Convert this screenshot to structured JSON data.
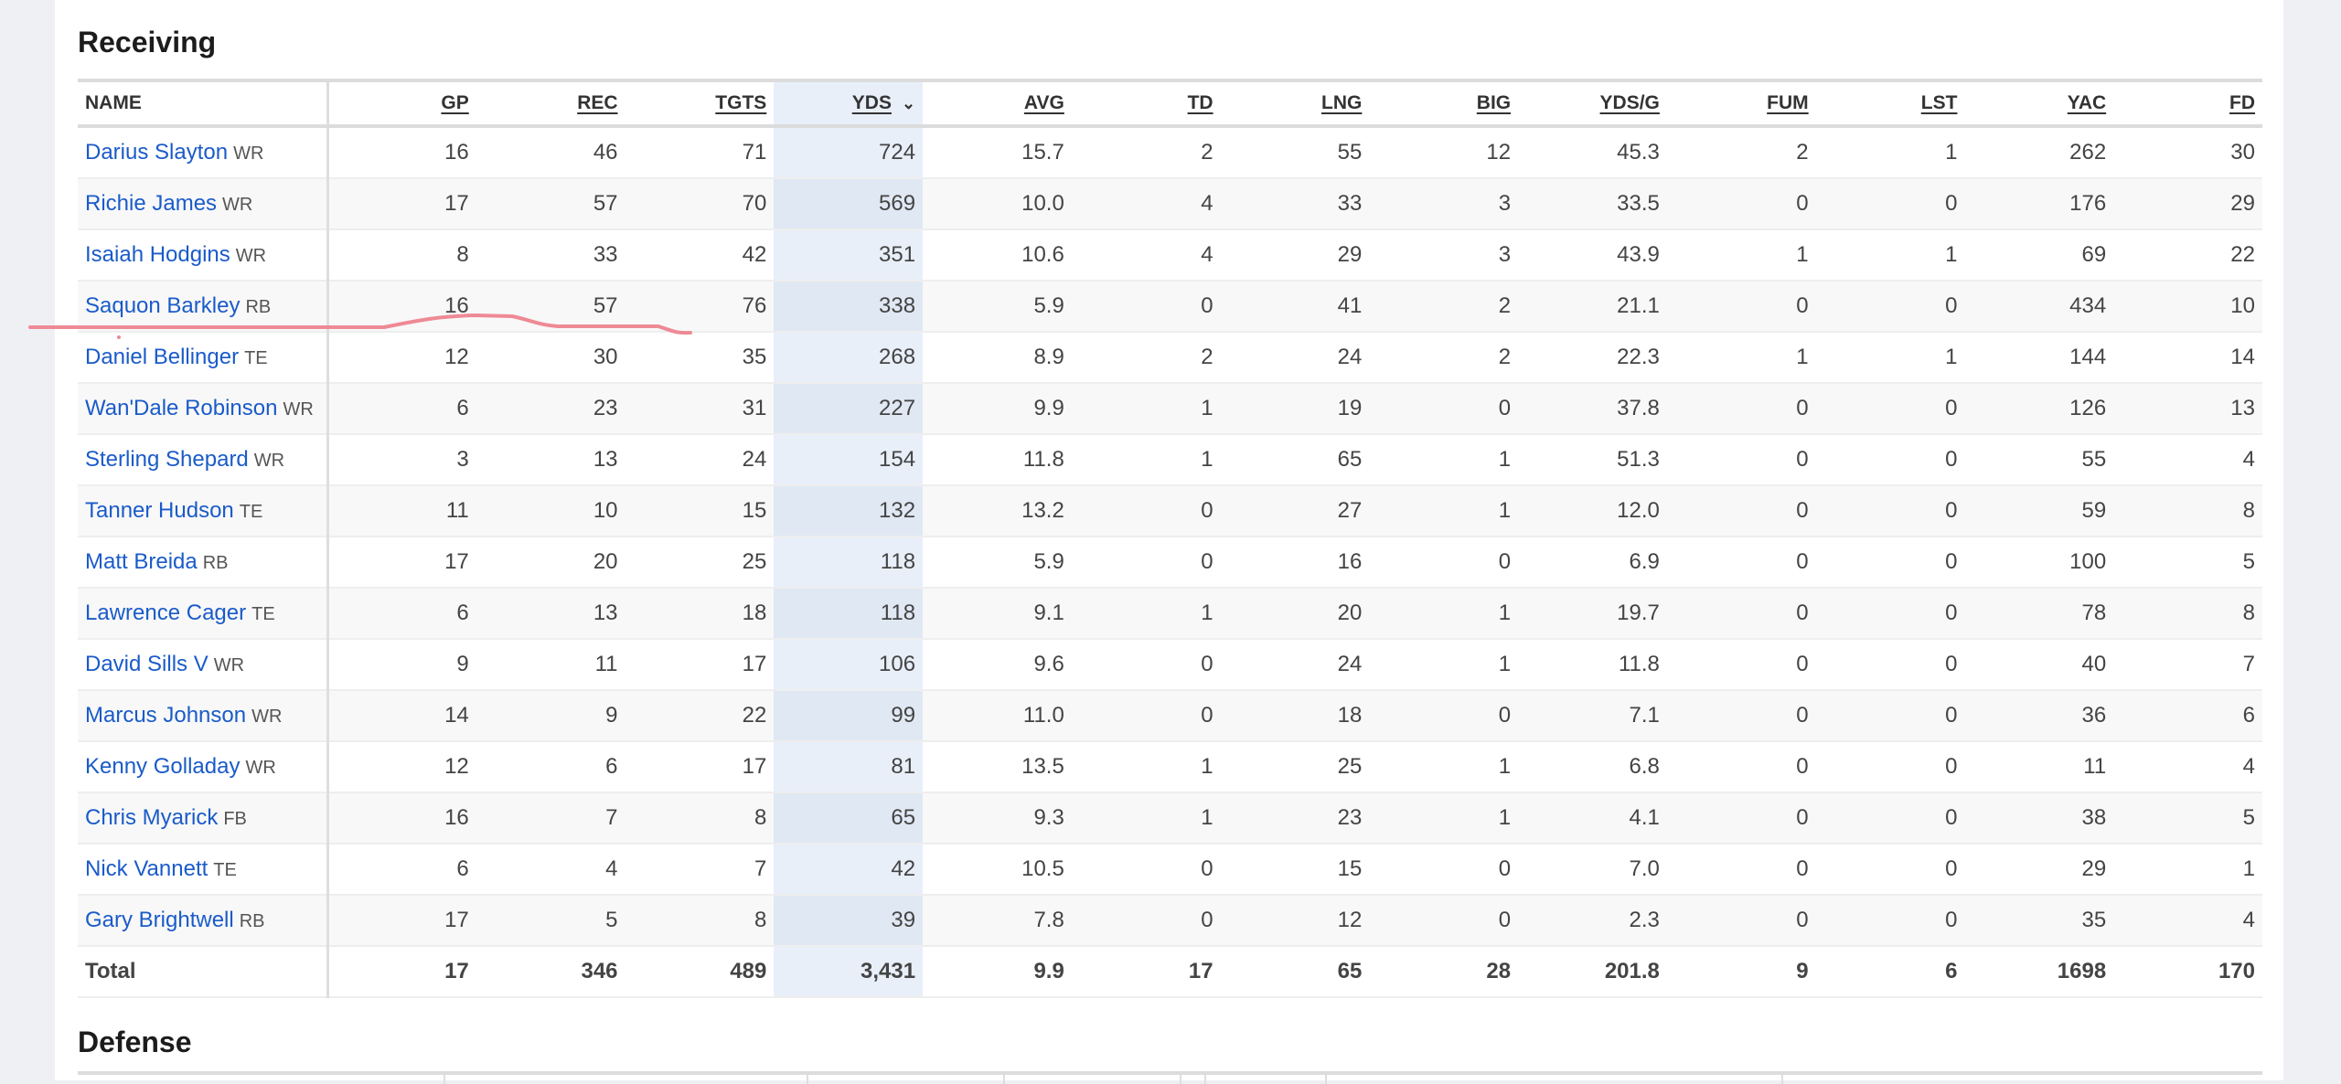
{
  "receiving": {
    "title": "Receiving",
    "sort_icon": "chevron-down-icon",
    "sorted_column": "YDS",
    "columns": [
      "NAME",
      "GP",
      "REC",
      "TGTS",
      "YDS",
      "AVG",
      "TD",
      "LNG",
      "BIG",
      "YDS/G",
      "FUM",
      "LST",
      "YAC",
      "FD"
    ],
    "rows": [
      {
        "name": "Darius Slayton",
        "pos": "WR",
        "stats": [
          "16",
          "46",
          "71",
          "724",
          "15.7",
          "2",
          "55",
          "12",
          "45.3",
          "2",
          "1",
          "262",
          "30"
        ]
      },
      {
        "name": "Richie James",
        "pos": "WR",
        "stats": [
          "17",
          "57",
          "70",
          "569",
          "10.0",
          "4",
          "33",
          "3",
          "33.5",
          "0",
          "0",
          "176",
          "29"
        ]
      },
      {
        "name": "Isaiah Hodgins",
        "pos": "WR",
        "stats": [
          "8",
          "33",
          "42",
          "351",
          "10.6",
          "4",
          "29",
          "3",
          "43.9",
          "1",
          "1",
          "69",
          "22"
        ]
      },
      {
        "name": "Saquon Barkley",
        "pos": "RB",
        "stats": [
          "16",
          "57",
          "76",
          "338",
          "5.9",
          "0",
          "41",
          "2",
          "21.1",
          "0",
          "0",
          "434",
          "10"
        ]
      },
      {
        "name": "Daniel Bellinger",
        "pos": "TE",
        "stats": [
          "12",
          "30",
          "35",
          "268",
          "8.9",
          "2",
          "24",
          "2",
          "22.3",
          "1",
          "1",
          "144",
          "14"
        ]
      },
      {
        "name": "Wan'Dale Robinson",
        "pos": "WR",
        "stats": [
          "6",
          "23",
          "31",
          "227",
          "9.9",
          "1",
          "19",
          "0",
          "37.8",
          "0",
          "0",
          "126",
          "13"
        ]
      },
      {
        "name": "Sterling Shepard",
        "pos": "WR",
        "stats": [
          "3",
          "13",
          "24",
          "154",
          "11.8",
          "1",
          "65",
          "1",
          "51.3",
          "0",
          "0",
          "55",
          "4"
        ]
      },
      {
        "name": "Tanner Hudson",
        "pos": "TE",
        "stats": [
          "11",
          "10",
          "15",
          "132",
          "13.2",
          "0",
          "27",
          "1",
          "12.0",
          "0",
          "0",
          "59",
          "8"
        ]
      },
      {
        "name": "Matt Breida",
        "pos": "RB",
        "stats": [
          "17",
          "20",
          "25",
          "118",
          "5.9",
          "0",
          "16",
          "0",
          "6.9",
          "0",
          "0",
          "100",
          "5"
        ]
      },
      {
        "name": "Lawrence Cager",
        "pos": "TE",
        "stats": [
          "6",
          "13",
          "18",
          "118",
          "9.1",
          "1",
          "20",
          "1",
          "19.7",
          "0",
          "0",
          "78",
          "8"
        ]
      },
      {
        "name": "David Sills V",
        "pos": "WR",
        "stats": [
          "9",
          "11",
          "17",
          "106",
          "9.6",
          "0",
          "24",
          "1",
          "11.8",
          "0",
          "0",
          "40",
          "7"
        ]
      },
      {
        "name": "Marcus Johnson",
        "pos": "WR",
        "stats": [
          "14",
          "9",
          "22",
          "99",
          "11.0",
          "0",
          "18",
          "0",
          "7.1",
          "0",
          "0",
          "36",
          "6"
        ]
      },
      {
        "name": "Kenny Golladay",
        "pos": "WR",
        "stats": [
          "12",
          "6",
          "17",
          "81",
          "13.5",
          "1",
          "25",
          "1",
          "6.8",
          "0",
          "0",
          "11",
          "4"
        ]
      },
      {
        "name": "Chris Myarick",
        "pos": "FB",
        "stats": [
          "16",
          "7",
          "8",
          "65",
          "9.3",
          "1",
          "23",
          "1",
          "4.1",
          "0",
          "0",
          "38",
          "5"
        ]
      },
      {
        "name": "Nick Vannett",
        "pos": "TE",
        "stats": [
          "6",
          "4",
          "7",
          "42",
          "10.5",
          "0",
          "15",
          "0",
          "7.0",
          "0",
          "0",
          "29",
          "1"
        ]
      },
      {
        "name": "Gary Brightwell",
        "pos": "RB",
        "stats": [
          "17",
          "5",
          "8",
          "39",
          "7.8",
          "0",
          "12",
          "0",
          "2.3",
          "0",
          "0",
          "35",
          "4"
        ]
      }
    ],
    "total": {
      "label": "Total",
      "stats": [
        "17",
        "346",
        "489",
        "3,431",
        "9.9",
        "17",
        "65",
        "28",
        "201.8",
        "9",
        "6",
        "1698",
        "170"
      ]
    }
  },
  "defense": {
    "title": "Defense"
  },
  "colors": {
    "link": "#1a5bc9",
    "sorted_column_bg": "#e8eff9",
    "annotation": "#ee8a95",
    "page_bg": "#eef0f4"
  }
}
